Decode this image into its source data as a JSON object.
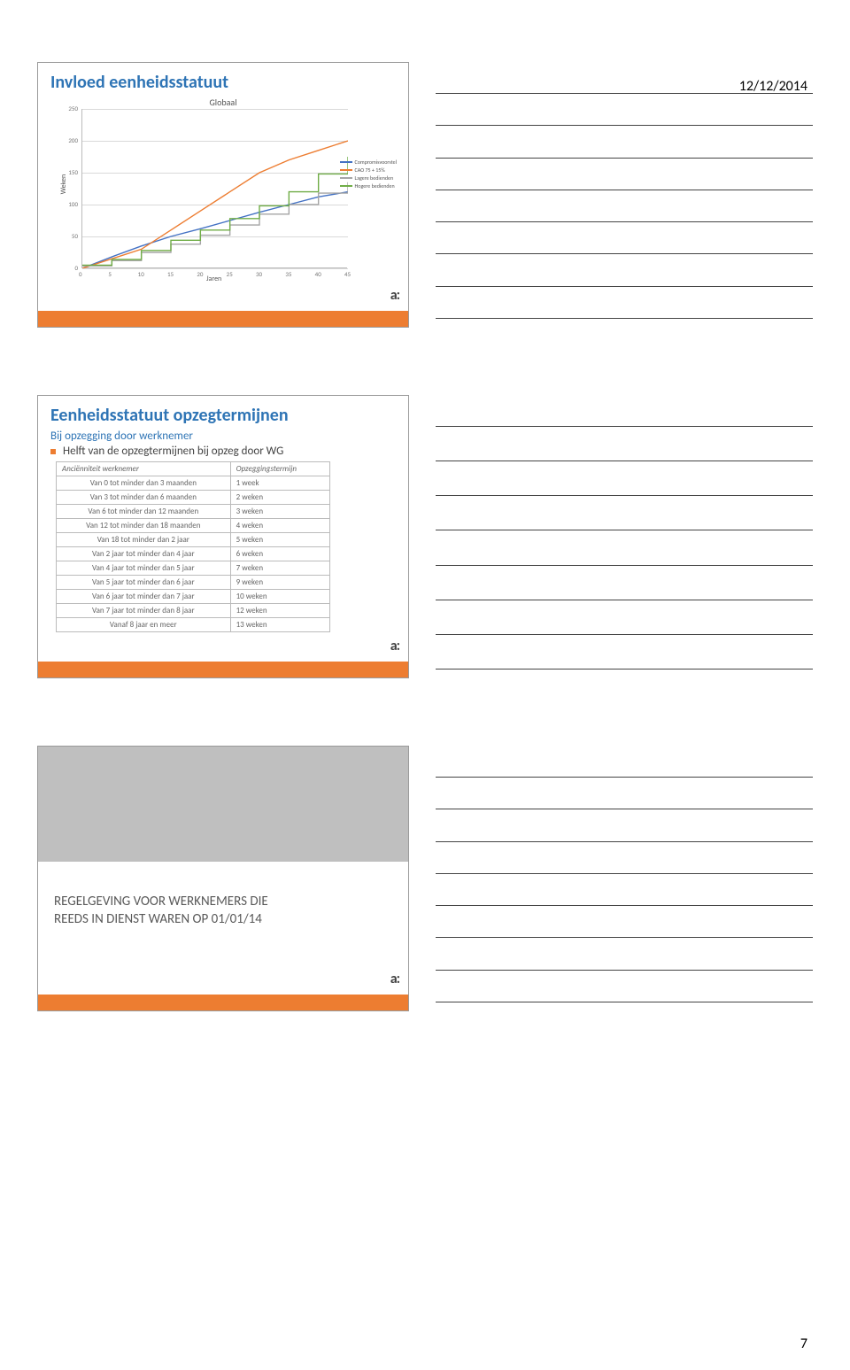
{
  "page": {
    "date": "12/12/2014",
    "number": "7"
  },
  "logo_text": "a:",
  "slide1": {
    "title": "Invloed eenheidsstatuut",
    "chart": {
      "type": "line",
      "inner_title": "Globaal",
      "ylabel": "Weken",
      "xlabel": "Jaren",
      "xlim": [
        0,
        45
      ],
      "xtick_step": 5,
      "ylim": [
        0,
        250
      ],
      "ytick_step": 50,
      "background_color": "#ffffff",
      "grid_color": "#d9d9d9",
      "legend_items": [
        {
          "label": "Compromisvoorstel",
          "color": "#4472c4"
        },
        {
          "label": "CAO 75 + 15%",
          "color": "#ed7d31"
        },
        {
          "label": "Lagere bedienden",
          "color": "#a5a5a5"
        },
        {
          "label": "Hogere bedienden",
          "color": "#70ad47"
        }
      ],
      "series": {
        "compromis": {
          "color": "#4472c4",
          "points": [
            [
              0,
              0
            ],
            [
              5,
              18
            ],
            [
              10,
              35
            ],
            [
              15,
              50
            ],
            [
              20,
              62
            ],
            [
              25,
              75
            ],
            [
              30,
              88
            ],
            [
              35,
              100
            ],
            [
              40,
              112
            ],
            [
              45,
              120
            ]
          ]
        },
        "cao75": {
          "color": "#ed7d31",
          "points": [
            [
              0,
              0
            ],
            [
              5,
              15
            ],
            [
              10,
              30
            ],
            [
              15,
              60
            ],
            [
              20,
              90
            ],
            [
              25,
              120
            ],
            [
              30,
              150
            ],
            [
              35,
              170
            ],
            [
              40,
              185
            ],
            [
              45,
              200
            ]
          ]
        },
        "lagere": {
          "color": "#a5a5a5",
          "step": true,
          "points": [
            [
              0,
              4
            ],
            [
              5,
              12
            ],
            [
              10,
              25
            ],
            [
              15,
              38
            ],
            [
              20,
              52
            ],
            [
              25,
              68
            ],
            [
              30,
              85
            ],
            [
              35,
              100
            ],
            [
              40,
              118
            ],
            [
              45,
              135
            ]
          ]
        },
        "hogere": {
          "color": "#70ad47",
          "step": true,
          "points": [
            [
              0,
              5
            ],
            [
              5,
              14
            ],
            [
              10,
              28
            ],
            [
              15,
              44
            ],
            [
              20,
              60
            ],
            [
              25,
              78
            ],
            [
              30,
              98
            ],
            [
              35,
              120
            ],
            [
              40,
              148
            ],
            [
              45,
              175
            ]
          ]
        }
      }
    }
  },
  "slide2": {
    "title": "Eenheidsstatuut opzegtermijnen",
    "subtitle": "Bij opzegging door werknemer",
    "bullet": "Helft van de opzegtermijnen bij opzeg door WG",
    "table": {
      "columns": [
        "Anciënniteit werknemer",
        "Opzeggingstermijn"
      ],
      "rows": [
        [
          "Van 0 tot minder dan 3 maanden",
          "1 week"
        ],
        [
          "Van 3 tot minder dan 6 maanden",
          "2 weken"
        ],
        [
          "Van 6 tot minder dan 12 maanden",
          "3 weken"
        ],
        [
          "Van 12 tot minder dan 18 maanden",
          "4 weken"
        ],
        [
          "Van 18 tot minder dan 2 jaar",
          "5 weken"
        ],
        [
          "Van 2 jaar tot minder dan 4 jaar",
          "6 weken"
        ],
        [
          "Van 4 jaar tot minder dan 5 jaar",
          "7 weken"
        ],
        [
          "Van 5 jaar tot minder dan 6 jaar",
          "9 weken"
        ],
        [
          "Van 6 jaar tot minder dan 7 jaar",
          "10 weken"
        ],
        [
          "Van 7 jaar tot minder dan 8 jaar",
          "12 weken"
        ],
        [
          "Vanaf 8 jaar en meer",
          "13 weken"
        ]
      ]
    }
  },
  "slide3": {
    "section_line1": "REGELGEVING VOOR WERKNEMERS DIE",
    "section_line2": "REEDS IN DIENST WAREN OP 01/01/14"
  },
  "colors": {
    "accent_blue": "#2e74b5",
    "accent_orange": "#ed7d31",
    "gray_fill": "#bfbfbf"
  }
}
